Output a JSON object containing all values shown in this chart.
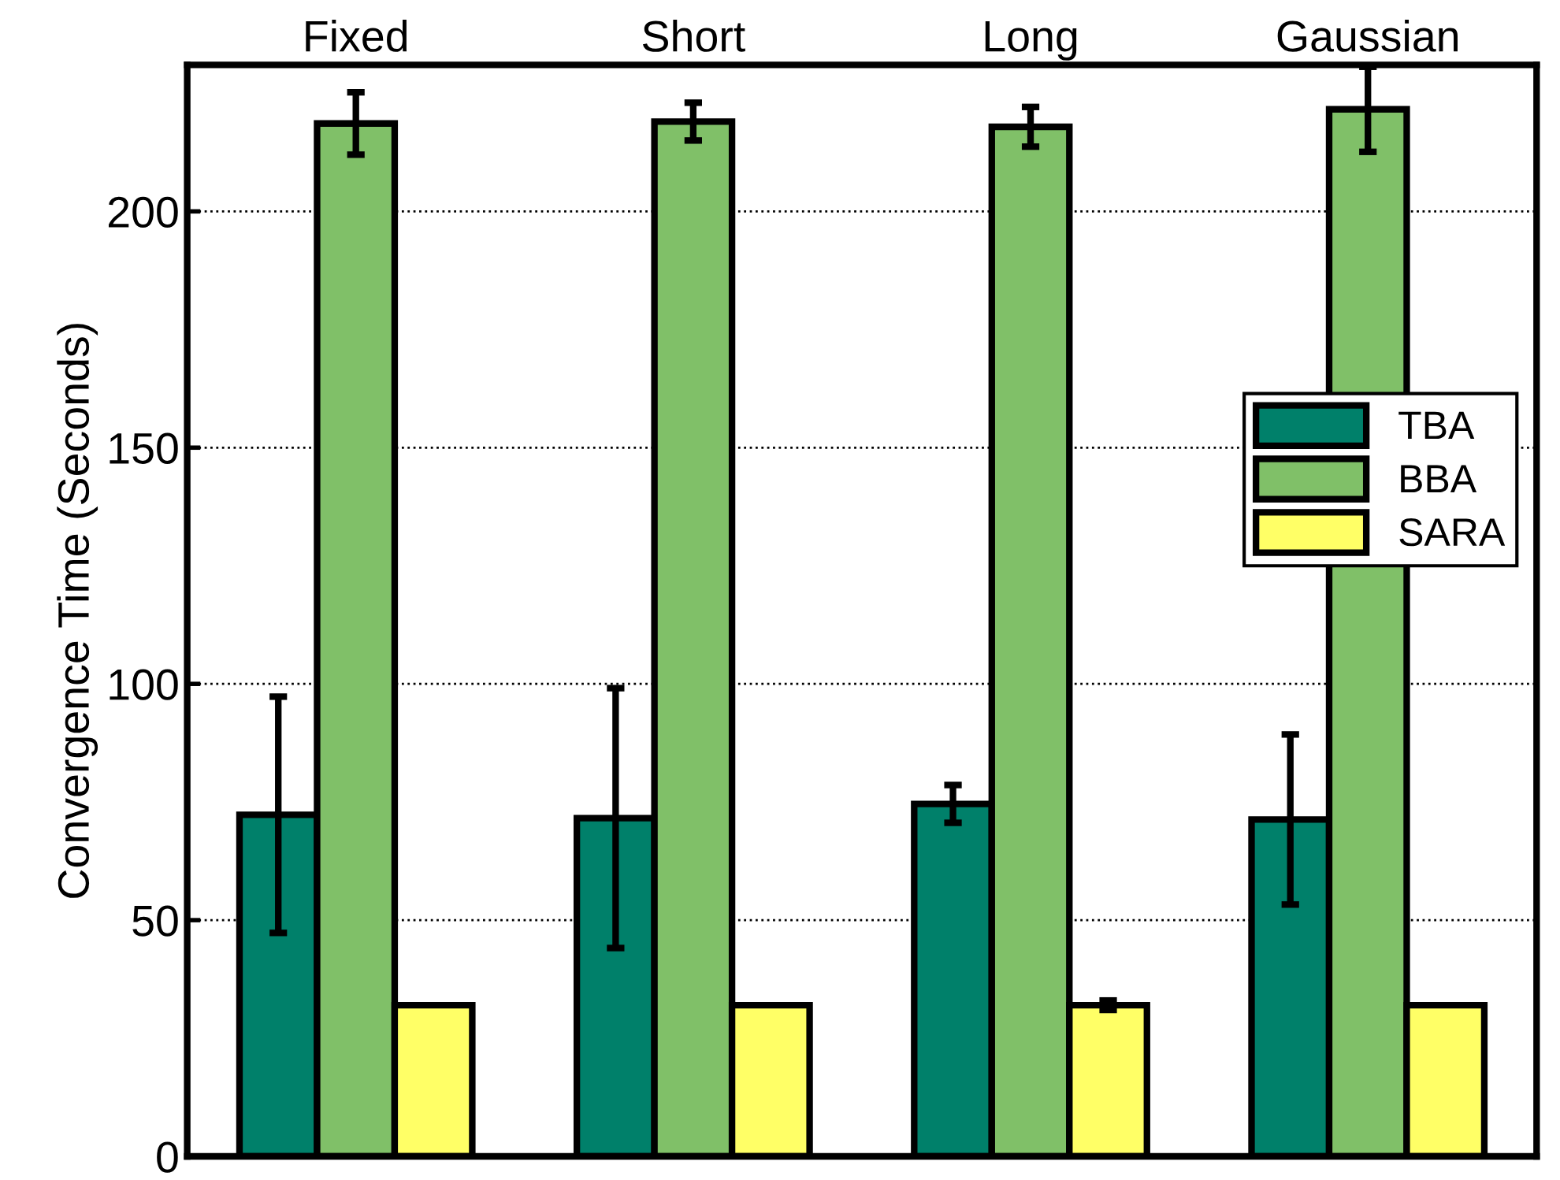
{
  "chart_data": {
    "type": "bar",
    "ylabel": "Convergence Time (Seconds)",
    "categories": [
      "Fixed",
      "Short",
      "Long",
      "Gaussian"
    ],
    "series": [
      {
        "name": "TBA",
        "color": "#00806a",
        "values": [
          72.3,
          71.6,
          74.6,
          71.3
        ],
        "errors": [
          25,
          27.5,
          4,
          18
        ]
      },
      {
        "name": "BBA",
        "color": "#80c068",
        "values": [
          218.6,
          219,
          217.9,
          221.6
        ],
        "errors": [
          6.6,
          4,
          4.2,
          9
        ]
      },
      {
        "name": "SARA",
        "color": "#ffff66",
        "values": [
          32,
          32,
          32,
          32
        ],
        "errors": [
          null,
          null,
          1,
          null
        ]
      }
    ],
    "ylim": [
      0,
      231
    ],
    "yticks": [
      0,
      50,
      100,
      150,
      200
    ],
    "grid": "y",
    "legend": "right"
  }
}
